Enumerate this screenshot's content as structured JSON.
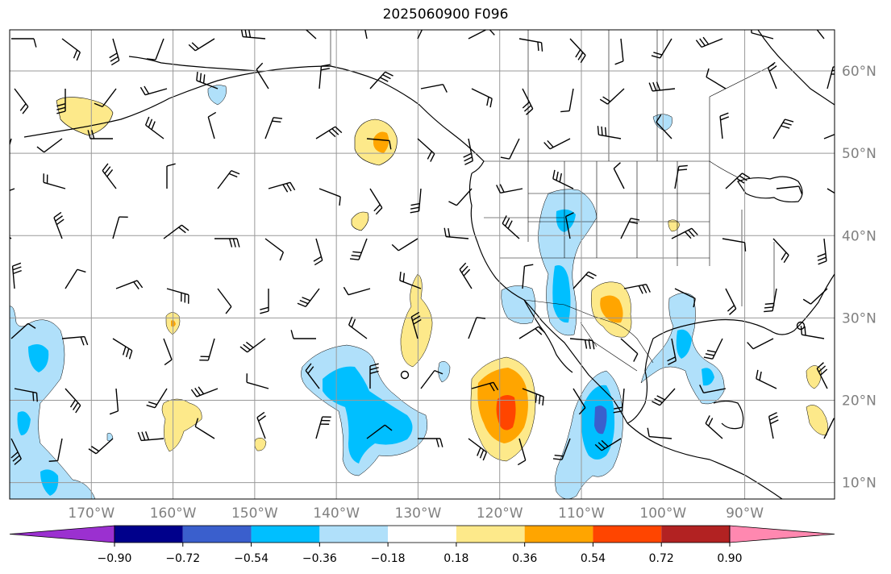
{
  "title": "2025060900 F096",
  "map": {
    "lon_min": -180,
    "lon_max": -79,
    "lat_min": 8,
    "lat_max": 65,
    "longitude_ticks": [
      {
        "lon": -170,
        "label": "170°W"
      },
      {
        "lon": -160,
        "label": "160°W"
      },
      {
        "lon": -150,
        "label": "150°W"
      },
      {
        "lon": -140,
        "label": "140°W"
      },
      {
        "lon": -130,
        "label": "130°W"
      },
      {
        "lon": -120,
        "label": "120°W"
      },
      {
        "lon": -110,
        "label": "110°W"
      },
      {
        "lon": -100,
        "label": "100°W"
      },
      {
        "lon": -90,
        "label": "90°W"
      }
    ],
    "latitude_ticks": [
      {
        "lat": 60,
        "label": "60°N"
      },
      {
        "lat": 50,
        "label": "50°N"
      },
      {
        "lat": 40,
        "label": "40°N"
      },
      {
        "lat": 30,
        "label": "30°N"
      },
      {
        "lat": 20,
        "label": "20°N"
      },
      {
        "lat": 10,
        "label": "10°N"
      }
    ],
    "gridlines": true,
    "land_outline_color": "#000000",
    "grid_color": "#999999"
  },
  "colorbar": {
    "colors": [
      "#9b30d0",
      "#00008b",
      "#3a5fcd",
      "#00bfff",
      "#b0e0fa",
      "#ffffff",
      "#fde98a",
      "#ffa500",
      "#ff4500",
      "#b22222",
      "#ff88b0"
    ],
    "tick_labels": [
      "−0.90",
      "−0.72",
      "−0.54",
      "−0.36",
      "−0.18",
      "0.18",
      "0.36",
      "0.54",
      "0.72",
      "0.90"
    ],
    "extend": "both"
  },
  "chart_data": {
    "type": "heatmap",
    "title": "2025060900 F096",
    "anomaly_regions": [
      {
        "lon": -165,
        "lat": 54,
        "value": 0.25
      },
      {
        "lon": -124,
        "lat": 51,
        "value": 0.45
      },
      {
        "lon": -137,
        "lat": 41,
        "value": 0.2
      },
      {
        "lon": -151,
        "lat": 57,
        "value": -0.2
      },
      {
        "lon": -129,
        "lat": 31,
        "value": 0.25
      },
      {
        "lon": -160,
        "lat": 30,
        "value": 0.4
      },
      {
        "lon": -160,
        "lat": 19,
        "value": 0.25
      },
      {
        "lon": -150,
        "lat": 14,
        "value": 0.2
      },
      {
        "lon": -140,
        "lat": 20,
        "value": -0.4
      },
      {
        "lon": -120,
        "lat": 20,
        "value": 0.65
      },
      {
        "lon": -109,
        "lat": 18,
        "value": -0.55
      },
      {
        "lon": -113,
        "lat": 41,
        "value": -0.4
      },
      {
        "lon": -114,
        "lat": 33,
        "value": -0.4
      },
      {
        "lon": -120,
        "lat": 33,
        "value": -0.2
      },
      {
        "lon": -106,
        "lat": 32,
        "value": 0.45
      },
      {
        "lon": -92,
        "lat": 24,
        "value": -0.4
      },
      {
        "lon": -97,
        "lat": 26,
        "value": -0.2
      },
      {
        "lon": -98,
        "lat": 52,
        "value": -0.2
      },
      {
        "lon": -98,
        "lat": 40,
        "value": 0.2
      },
      {
        "lon": -176,
        "lat": 22,
        "value": -0.4
      },
      {
        "lon": -174,
        "lat": 12,
        "value": -0.4
      },
      {
        "lon": -106,
        "lat": 10,
        "value": -0.2
      },
      {
        "lon": -81,
        "lat": 24,
        "value": 0.2
      },
      {
        "lon": -80,
        "lat": 17,
        "value": 0.2
      }
    ],
    "wind_barbs": "wind barbs plotted on a regular grid over the map domain"
  }
}
